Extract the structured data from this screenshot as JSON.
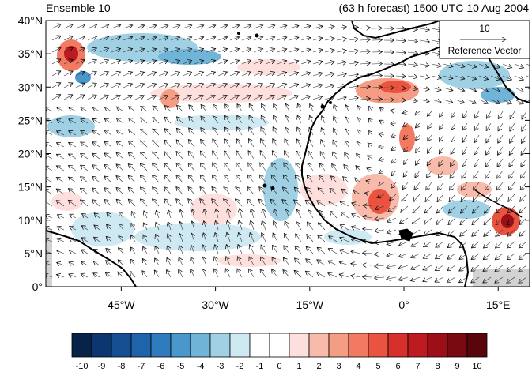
{
  "title_left": "Ensemble 10",
  "title_right": "(63 h forecast) 1500 UTC 10 Aug 2004",
  "reference_vector": {
    "magnitude": "10",
    "label": "Reference Vector"
  },
  "lat_ticks": [
    {
      "label": "40°N",
      "lat": 40
    },
    {
      "label": "35°N",
      "lat": 35
    },
    {
      "label": "30°N",
      "lat": 30
    },
    {
      "label": "25°N",
      "lat": 25
    },
    {
      "label": "20°N",
      "lat": 20
    },
    {
      "label": "15°N",
      "lat": 15
    },
    {
      "label": "10°N",
      "lat": 10
    },
    {
      "label": "5°N",
      "lat": 5
    },
    {
      "label": "0°",
      "lat": 0
    }
  ],
  "lon_ticks": [
    {
      "label": "45°W",
      "lon": -45
    },
    {
      "label": "30°W",
      "lon": -30
    },
    {
      "label": "15°W",
      "lon": -15
    },
    {
      "label": "0°",
      "lon": 0
    },
    {
      "label": "15°E",
      "lon": 15
    }
  ],
  "map_extent": {
    "lon": [
      -57,
      20
    ],
    "lat": [
      0,
      40
    ]
  },
  "colorbar": {
    "labels": [
      "-10",
      "-9",
      "-8",
      "-7",
      "-6",
      "-5",
      "-4",
      "-3",
      "-2",
      "-1",
      "0",
      "1",
      "2",
      "3",
      "4",
      "5",
      "6",
      "7",
      "8",
      "9",
      "10"
    ],
    "colors": [
      "#08234a",
      "#0b3670",
      "#154e91",
      "#1f64aa",
      "#2f7bbd",
      "#4a98cb",
      "#70b4d8",
      "#a0d0e3",
      "#cfe9f3",
      "#ffffff",
      "#ffffff",
      "#fde0dd",
      "#f8bbab",
      "#f59c84",
      "#f17a60",
      "#e9533f",
      "#d72f2c",
      "#bd1b21",
      "#9d0f18",
      "#7a0a12",
      "#58060c"
    ]
  },
  "colors": {
    "ocean": "#ffffff",
    "coast": "#000000",
    "missing": "#d3d3d3"
  }
}
